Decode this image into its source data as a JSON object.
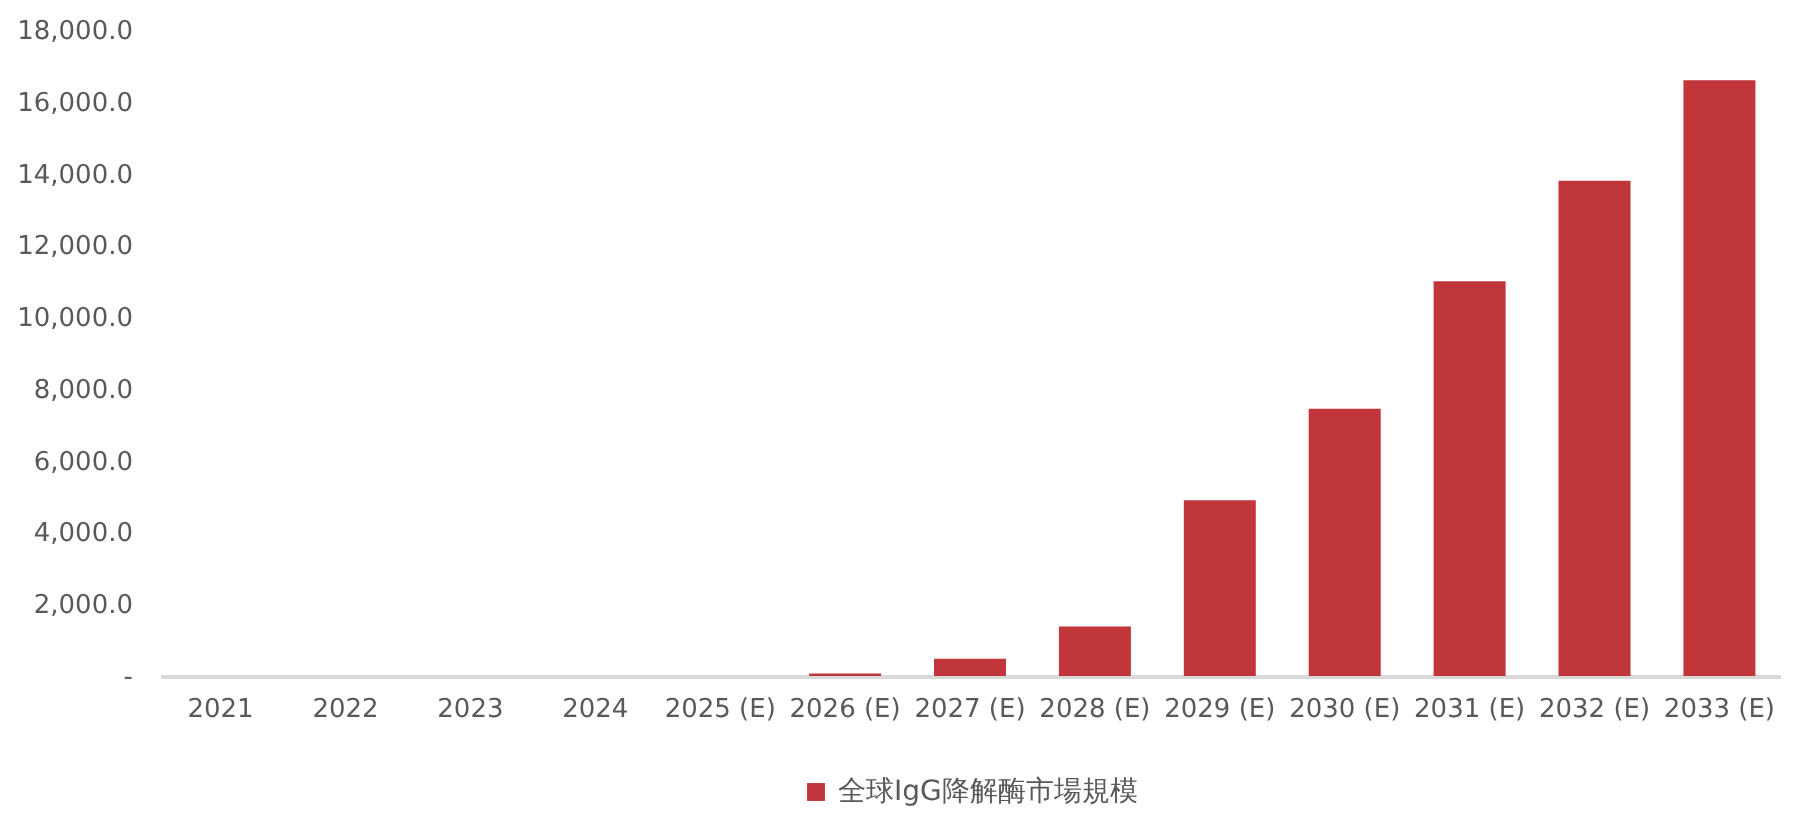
{
  "chart_data": {
    "type": "bar",
    "categories": [
      "2021",
      "2022",
      "2023",
      "2024",
      "2025 (E)",
      "2026 (E)",
      "2027 (E)",
      "2028 (E)",
      "2029 (E)",
      "2030 (E)",
      "2031 (E)",
      "2032 (E)",
      "2033 (E)"
    ],
    "series": [
      {
        "name": "全球IgG降解酶市場規模",
        "color": "#c0363b",
        "values": [
          0,
          0,
          0,
          0,
          0,
          70,
          480,
          1380,
          4900,
          7450,
          11000,
          13800,
          16600
        ]
      }
    ],
    "ylim": [
      0,
      18000
    ],
    "yticks": [
      {
        "value": 0,
        "label": "-"
      },
      {
        "value": 2000,
        "label": "2,000.0"
      },
      {
        "value": 4000,
        "label": "4,000.0"
      },
      {
        "value": 6000,
        "label": "6,000.0"
      },
      {
        "value": 8000,
        "label": "8,000.0"
      },
      {
        "value": 10000,
        "label": "10,000.0"
      },
      {
        "value": 12000,
        "label": "12,000.0"
      },
      {
        "value": 14000,
        "label": "14,000.0"
      },
      {
        "value": 16000,
        "label": "16,000.0"
      },
      {
        "value": 18000,
        "label": "18,000.0"
      }
    ],
    "grid": false,
    "legend": "bottom"
  }
}
